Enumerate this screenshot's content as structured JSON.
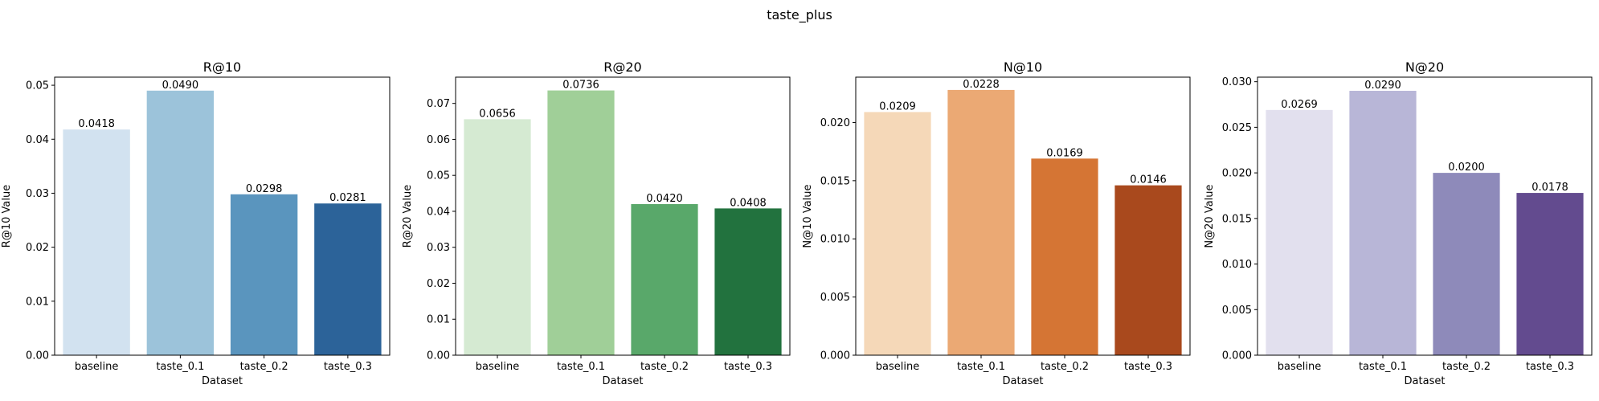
{
  "suptitle": "taste_plus",
  "chart_data": [
    {
      "type": "bar",
      "title": "R@10",
      "xlabel": "Dataset",
      "ylabel": "R@10 Value",
      "categories": [
        "baseline",
        "taste_0.1",
        "taste_0.2",
        "taste_0.3"
      ],
      "values": [
        0.0418,
        0.049,
        0.0298,
        0.0281
      ],
      "value_labels": [
        "0.0418",
        "0.0490",
        "0.0298",
        "0.0281"
      ],
      "colors": [
        "#d2e2f0",
        "#9cc3da",
        "#5a95be",
        "#2c6399"
      ],
      "ylim": [
        0,
        0.0515
      ],
      "yticks": [
        0,
        0.01,
        0.02,
        0.03,
        0.04,
        0.05
      ],
      "ytick_labels": [
        "0.00",
        "0.01",
        "0.02",
        "0.03",
        "0.04",
        "0.05"
      ],
      "grid": false,
      "legend": "none"
    },
    {
      "type": "bar",
      "title": "R@20",
      "xlabel": "Dataset",
      "ylabel": "R@20 Value",
      "categories": [
        "baseline",
        "taste_0.1",
        "taste_0.2",
        "taste_0.3"
      ],
      "values": [
        0.0656,
        0.0736,
        0.042,
        0.0408
      ],
      "value_labels": [
        "0.0656",
        "0.0736",
        "0.0420",
        "0.0408"
      ],
      "colors": [
        "#d5ead2",
        "#a0cf98",
        "#59a86a",
        "#22723e"
      ],
      "ylim": [
        0,
        0.0773
      ],
      "yticks": [
        0,
        0.01,
        0.02,
        0.03,
        0.04,
        0.05,
        0.06,
        0.07
      ],
      "ytick_labels": [
        "0.00",
        "0.01",
        "0.02",
        "0.03",
        "0.04",
        "0.05",
        "0.06",
        "0.07"
      ],
      "grid": false,
      "legend": "none"
    },
    {
      "type": "bar",
      "title": "N@10",
      "xlabel": "Dataset",
      "ylabel": "N@10 Value",
      "categories": [
        "baseline",
        "taste_0.1",
        "taste_0.2",
        "taste_0.3"
      ],
      "values": [
        0.0209,
        0.0228,
        0.0169,
        0.0146
      ],
      "value_labels": [
        "0.0209",
        "0.0228",
        "0.0169",
        "0.0146"
      ],
      "colors": [
        "#f5d8b8",
        "#eba974",
        "#d57534",
        "#a9491d"
      ],
      "ylim": [
        0,
        0.0239
      ],
      "yticks": [
        0,
        0.005,
        0.01,
        0.015,
        0.02
      ],
      "ytick_labels": [
        "0.000",
        "0.005",
        "0.010",
        "0.015",
        "0.020"
      ],
      "grid": false,
      "legend": "none"
    },
    {
      "type": "bar",
      "title": "N@20",
      "xlabel": "Dataset",
      "ylabel": "N@20 Value",
      "categories": [
        "baseline",
        "taste_0.1",
        "taste_0.2",
        "taste_0.3"
      ],
      "values": [
        0.0269,
        0.029,
        0.02,
        0.0178
      ],
      "value_labels": [
        "0.0269",
        "0.0290",
        "0.0200",
        "0.0178"
      ],
      "colors": [
        "#e2e0ee",
        "#b8b6d7",
        "#8e8aba",
        "#634b8f"
      ],
      "ylim": [
        0,
        0.0305
      ],
      "yticks": [
        0,
        0.005,
        0.01,
        0.015,
        0.02,
        0.025,
        0.03
      ],
      "ytick_labels": [
        "0.000",
        "0.005",
        "0.010",
        "0.015",
        "0.020",
        "0.025",
        "0.030"
      ],
      "grid": false,
      "legend": "none"
    }
  ]
}
